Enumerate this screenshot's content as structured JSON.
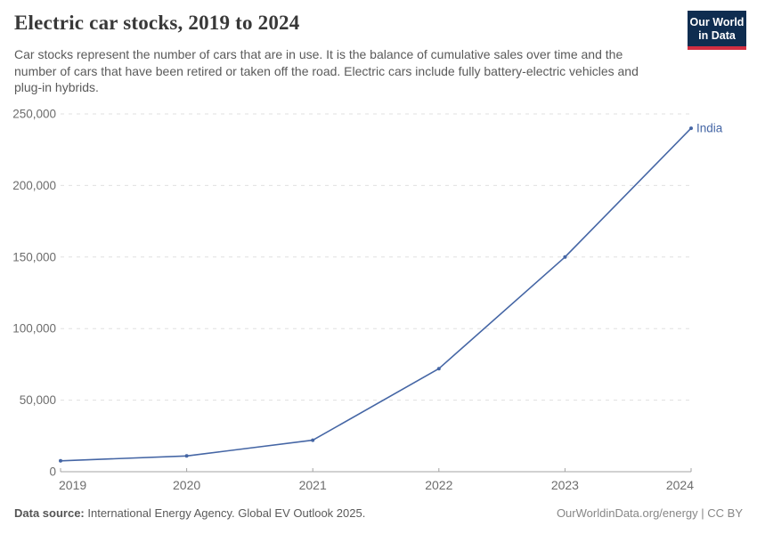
{
  "header": {
    "title": "Electric car stocks, 2019 to 2024",
    "subtitle": "Car stocks represent the number of cars that are in use. It is the balance of cumulative sales over time and the number of cars that have been retired or taken off the road. Electric cars include fully battery-electric vehicles and plug-in hybrids.",
    "logo": {
      "line1": "Our World",
      "line2": "in Data"
    }
  },
  "chart_data": {
    "type": "line",
    "title": "Electric car stocks, 2019 to 2024",
    "categories": [
      "2019",
      "2020",
      "2021",
      "2022",
      "2023",
      "2024"
    ],
    "series": [
      {
        "name": "India",
        "values": [
          7600,
          11000,
          22000,
          72000,
          150000,
          240000
        ]
      }
    ],
    "xlabel": "",
    "ylabel": "",
    "ylim": [
      0,
      250000
    ],
    "y_ticks": [
      {
        "value": 0,
        "label": "0"
      },
      {
        "value": 50000,
        "label": "50,000"
      },
      {
        "value": 100000,
        "label": "100,000"
      },
      {
        "value": 150000,
        "label": "150,000"
      },
      {
        "value": 200000,
        "label": "200,000"
      },
      {
        "value": 250000,
        "label": "250,000"
      }
    ],
    "grid": true,
    "legend": "end-of-line label"
  },
  "footer": {
    "source_label": "Data source:",
    "source_text": " International Energy Agency. Global EV Outlook 2025.",
    "credit": "OurWorldinData.org/energy | CC BY"
  },
  "colors": {
    "series_line": "#4566a5",
    "grid": "#e0e0e0",
    "axis": "#a3a3a3",
    "tick_label": "#6d6d6d",
    "logo_bg": "#0f2d50",
    "logo_accent": "#d22e41"
  }
}
